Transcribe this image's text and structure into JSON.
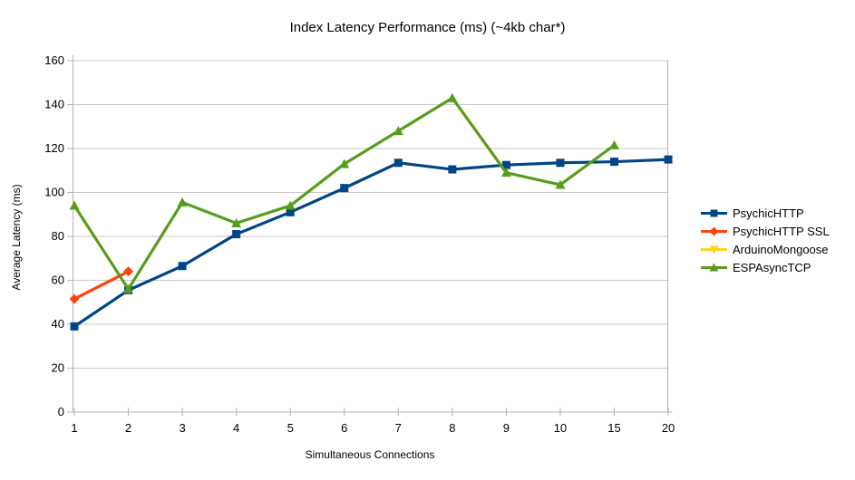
{
  "chart_data": {
    "type": "line",
    "title": "Index Latency Performance (ms) (~4kb char*)",
    "xlabel": "Simultaneous Connections",
    "ylabel": "Average Latency (ms)",
    "categories": [
      "1",
      "2",
      "3",
      "4",
      "5",
      "6",
      "7",
      "8",
      "9",
      "10",
      "15",
      "20"
    ],
    "ylim": [
      0,
      160
    ],
    "yticks": [
      0,
      20,
      40,
      60,
      80,
      100,
      120,
      140,
      160
    ],
    "grid": "horizontal-only",
    "legend_position": "right",
    "background_color": "#ffffff",
    "axis_color": "#b3b3b3",
    "grid_color": "#c9c9c9",
    "text_color": "#000000",
    "series": [
      {
        "name": "PsychicHTTP",
        "color": "#004586",
        "marker": "square",
        "values": [
          39,
          55.5,
          66.5,
          81,
          91,
          102,
          113.5,
          110.5,
          112.5,
          113.5,
          114,
          115
        ]
      },
      {
        "name": "PsychicHTTP SSL",
        "color": "#FF420E",
        "marker": "diamond",
        "values": [
          51.5,
          64,
          null,
          null,
          null,
          null,
          null,
          null,
          null,
          null,
          null,
          null
        ]
      },
      {
        "name": "ArduinoMongoose",
        "color": "#FFD320",
        "marker": "triangle-down",
        "values": [
          null,
          null,
          null,
          null,
          null,
          null,
          null,
          null,
          null,
          null,
          null,
          null
        ]
      },
      {
        "name": "ESPAsyncTCP",
        "color": "#579D1C",
        "marker": "triangle-up",
        "values": [
          94,
          56,
          95.5,
          86,
          94,
          113,
          128,
          143,
          109,
          103.5,
          121.5,
          null
        ]
      }
    ]
  }
}
